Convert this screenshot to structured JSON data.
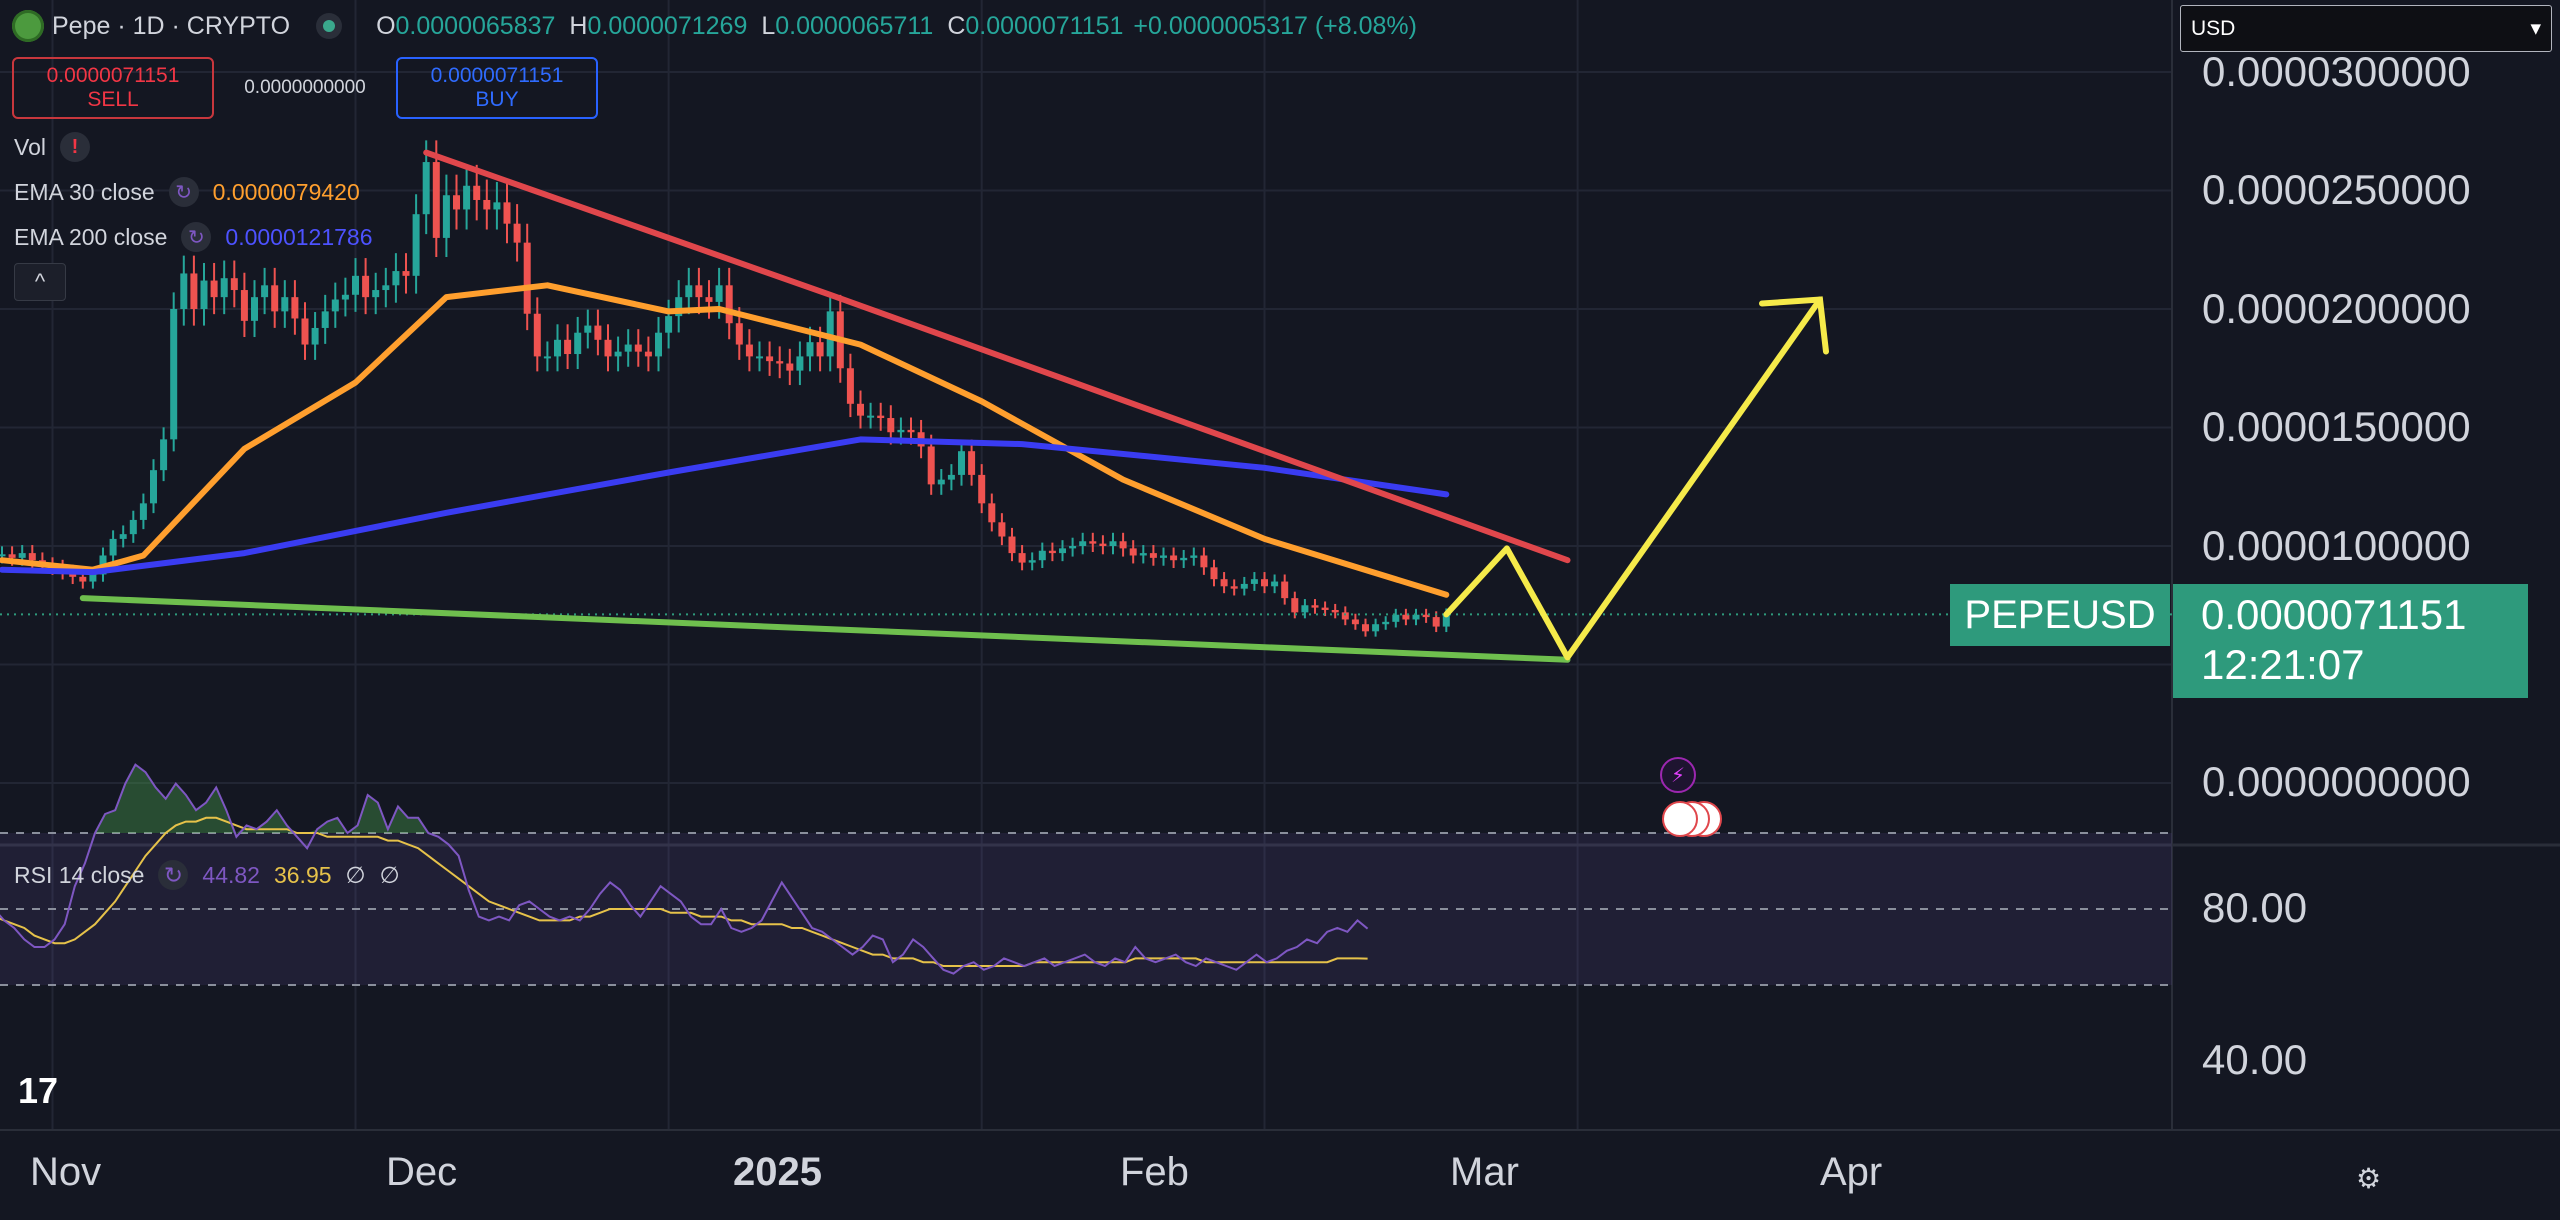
{
  "header": {
    "title": "Pepe · 1D · CRYPTO",
    "ohlc": {
      "o_label": "O",
      "o": "0.0000065837",
      "h_label": "H",
      "h": "0.0000071269",
      "l_label": "L",
      "l": "0.0000065711",
      "c_label": "C",
      "c": "0.0000071151",
      "change": "+0.0000005317 (+8.08%)"
    }
  },
  "trade": {
    "sell_price": "0.0000071151",
    "sell_label": "SELL",
    "spread": "0.0000000000",
    "buy_price": "0.0000071151",
    "buy_label": "BUY"
  },
  "indicators": {
    "vol_label": "Vol",
    "vol_icon": "!",
    "ema30_label": "EMA 30 close",
    "ema30_value": "0.0000079420",
    "ema200_label": "EMA 200 close",
    "ema200_value": "0.0000121786",
    "collapse_icon": "^"
  },
  "currency_select": {
    "value": "USD",
    "icon": "▾"
  },
  "price_tag": {
    "symbol": "PEPEUSD",
    "price": "0.0000071151",
    "countdown": "12:21:07"
  },
  "rsi_legend": {
    "label": "RSI 14 close",
    "rsi": "44.82",
    "ma": "36.95",
    "na1": "∅",
    "na2": "∅"
  },
  "colors": {
    "background": "#141722",
    "up": "#26a69a",
    "down": "#ef5350",
    "ema30": "#ff9f2e",
    "ema200": "#3a3cf2",
    "resistance": "#e0474c",
    "support": "#6fbf4e",
    "projection": "#f5ea4a",
    "rsi": "#7e57c2",
    "rsi_ma": "#e6c24a"
  },
  "chart_data": [
    {
      "type": "candlestick",
      "title": "",
      "xlabel": "",
      "ylabel": "",
      "x_ticks": [
        "Nov",
        "Dec",
        "2025",
        "Feb",
        "Mar",
        "Apr"
      ],
      "y_ticks": [
        "0.0000300000",
        "0.0000250000",
        "0.0000200000",
        "0.0000150000",
        "0.0000100000",
        "0.0000000000"
      ],
      "ylim": [
        0,
        3e-05
      ],
      "grid": true,
      "legend": "top-left",
      "close_series": [
        [
          "2024-10-27",
          9.65e-06
        ],
        [
          "2024-10-28",
          9.5e-06
        ],
        [
          "2024-10-29",
          9.7e-06
        ],
        [
          "2024-10-30",
          9.4e-06
        ],
        [
          "2024-10-31",
          9.2e-06
        ],
        [
          "2024-11-01",
          9.1e-06
        ],
        [
          "2024-11-02",
          8.9e-06
        ],
        [
          "2024-11-03",
          8.7e-06
        ],
        [
          "2024-11-04",
          8.5e-06
        ],
        [
          "2024-11-05",
          8.8e-06
        ],
        [
          "2024-11-06",
          9.6e-06
        ],
        [
          "2024-11-07",
          1.03e-05
        ],
        [
          "2024-11-08",
          1.05e-05
        ],
        [
          "2024-11-09",
          1.11e-05
        ],
        [
          "2024-11-10",
          1.18e-05
        ],
        [
          "2024-11-11",
          1.32e-05
        ],
        [
          "2024-11-12",
          1.45e-05
        ],
        [
          "2024-11-13",
          2e-05
        ],
        [
          "2024-11-14",
          2.15e-05
        ],
        [
          "2024-11-15",
          2e-05
        ],
        [
          "2024-11-16",
          2.12e-05
        ],
        [
          "2024-11-17",
          2.05e-05
        ],
        [
          "2024-11-18",
          2.13e-05
        ],
        [
          "2024-11-19",
          2.08e-05
        ],
        [
          "2024-11-20",
          1.95e-05
        ],
        [
          "2024-11-21",
          2.05e-05
        ],
        [
          "2024-11-22",
          2.1e-05
        ],
        [
          "2024-11-23",
          1.99e-05
        ],
        [
          "2024-11-24",
          2.05e-05
        ],
        [
          "2024-11-25",
          1.96e-05
        ],
        [
          "2024-11-26",
          1.85e-05
        ],
        [
          "2024-11-27",
          1.92e-05
        ],
        [
          "2024-11-28",
          1.99e-05
        ],
        [
          "2024-11-29",
          2.04e-05
        ],
        [
          "2024-11-30",
          2.06e-05
        ],
        [
          "2024-12-01",
          2.14e-05
        ],
        [
          "2024-12-02",
          2.05e-05
        ],
        [
          "2024-12-03",
          2.08e-05
        ],
        [
          "2024-12-04",
          2.1e-05
        ],
        [
          "2024-12-05",
          2.16e-05
        ],
        [
          "2024-12-06",
          2.14e-05
        ],
        [
          "2024-12-07",
          2.4e-05
        ],
        [
          "2024-12-08",
          2.62e-05
        ],
        [
          "2024-12-09",
          2.3e-05
        ],
        [
          "2024-12-10",
          2.48e-05
        ],
        [
          "2024-12-11",
          2.42e-05
        ],
        [
          "2024-12-12",
          2.52e-05
        ],
        [
          "2024-12-13",
          2.46e-05
        ],
        [
          "2024-12-14",
          2.42e-05
        ],
        [
          "2024-12-15",
          2.45e-05
        ],
        [
          "2024-12-16",
          2.36e-05
        ],
        [
          "2024-12-17",
          2.28e-05
        ],
        [
          "2024-12-18",
          1.98e-05
        ],
        [
          "2024-12-19",
          1.8e-05
        ],
        [
          "2024-12-20",
          1.8e-05
        ],
        [
          "2024-12-21",
          1.87e-05
        ],
        [
          "2024-12-22",
          1.81e-05
        ],
        [
          "2024-12-23",
          1.9e-05
        ],
        [
          "2024-12-24",
          1.93e-05
        ],
        [
          "2024-12-25",
          1.87e-05
        ],
        [
          "2024-12-26",
          1.8e-05
        ],
        [
          "2024-12-27",
          1.82e-05
        ],
        [
          "2024-12-28",
          1.85e-05
        ],
        [
          "2024-12-29",
          1.82e-05
        ],
        [
          "2024-12-30",
          1.8e-05
        ],
        [
          "2024-12-31",
          1.9e-05
        ],
        [
          "2025-01-01",
          1.97e-05
        ],
        [
          "2025-01-02",
          2.05e-05
        ],
        [
          "2025-01-03",
          2.1e-05
        ],
        [
          "2025-01-04",
          2.05e-05
        ],
        [
          "2025-01-05",
          2.03e-05
        ],
        [
          "2025-01-06",
          2.1e-05
        ],
        [
          "2025-01-07",
          1.94e-05
        ],
        [
          "2025-01-08",
          1.85e-05
        ],
        [
          "2025-01-09",
          1.8e-05
        ],
        [
          "2025-01-10",
          1.8e-05
        ],
        [
          "2025-01-11",
          1.78e-05
        ],
        [
          "2025-01-12",
          1.77e-05
        ],
        [
          "2025-01-13",
          1.74e-05
        ],
        [
          "2025-01-14",
          1.8e-05
        ],
        [
          "2025-01-15",
          1.86e-05
        ],
        [
          "2025-01-16",
          1.8e-05
        ],
        [
          "2025-01-17",
          1.99e-05
        ],
        [
          "2025-01-18",
          1.75e-05
        ],
        [
          "2025-01-19",
          1.6e-05
        ],
        [
          "2025-01-20",
          1.55e-05
        ],
        [
          "2025-01-21",
          1.55e-05
        ],
        [
          "2025-01-22",
          1.54e-05
        ],
        [
          "2025-01-23",
          1.48e-05
        ],
        [
          "2025-01-24",
          1.49e-05
        ],
        [
          "2025-01-25",
          1.48e-05
        ],
        [
          "2025-01-26",
          1.42e-05
        ],
        [
          "2025-01-27",
          1.26e-05
        ],
        [
          "2025-01-28",
          1.28e-05
        ],
        [
          "2025-01-29",
          1.3e-05
        ],
        [
          "2025-01-30",
          1.4e-05
        ],
        [
          "2025-01-31",
          1.3e-05
        ],
        [
          "2025-02-01",
          1.18e-05
        ],
        [
          "2025-02-02",
          1.1e-05
        ],
        [
          "2025-02-03",
          1.04e-05
        ],
        [
          "2025-02-04",
          9.7e-06
        ],
        [
          "2025-02-05",
          9.3e-06
        ],
        [
          "2025-02-06",
          9.4e-06
        ],
        [
          "2025-02-07",
          9.8e-06
        ],
        [
          "2025-02-08",
          9.7e-06
        ],
        [
          "2025-02-09",
          9.9e-06
        ],
        [
          "2025-02-10",
          1e-05
        ],
        [
          "2025-02-11",
          1.02e-05
        ],
        [
          "2025-02-12",
          1.01e-05
        ],
        [
          "2025-02-13",
          1e-05
        ],
        [
          "2025-02-14",
          1.02e-05
        ],
        [
          "2025-02-15",
          9.9e-06
        ],
        [
          "2025-02-16",
          9.6e-06
        ],
        [
          "2025-02-17",
          9.7e-06
        ],
        [
          "2025-02-18",
          9.5e-06
        ],
        [
          "2025-02-19",
          9.6e-06
        ],
        [
          "2025-02-20",
          9.4e-06
        ],
        [
          "2025-02-21",
          9.5e-06
        ],
        [
          "2025-02-22",
          9.6e-06
        ],
        [
          "2025-02-23",
          9.1e-06
        ],
        [
          "2025-02-24",
          8.6e-06
        ],
        [
          "2025-02-25",
          8.3e-06
        ],
        [
          "2025-02-26",
          8.2e-06
        ],
        [
          "2025-02-27",
          8.4e-06
        ],
        [
          "2025-02-28",
          8.6e-06
        ],
        [
          "2025-03-01",
          8.3e-06
        ],
        [
          "2025-03-02",
          8.5e-06
        ],
        [
          "2025-03-03",
          7.8e-06
        ],
        [
          "2025-03-04",
          7.2e-06
        ],
        [
          "2025-03-05",
          7.5e-06
        ],
        [
          "2025-03-06",
          7.4e-06
        ],
        [
          "2025-03-07",
          7.3e-06
        ],
        [
          "2025-03-08",
          7.2e-06
        ],
        [
          "2025-03-09",
          6.9e-06
        ],
        [
          "2025-03-10",
          6.7e-06
        ],
        [
          "2025-03-11",
          6.4e-06
        ],
        [
          "2025-03-12",
          6.7e-06
        ],
        [
          "2025-03-13",
          6.8e-06
        ],
        [
          "2025-03-14",
          7.1e-06
        ],
        [
          "2025-03-15",
          6.9e-06
        ],
        [
          "2025-03-16",
          7.1e-06
        ],
        [
          "2025-03-17",
          7e-06
        ],
        [
          "2025-03-18",
          6.6e-06
        ],
        [
          "2025-03-19",
          7.1151e-06
        ]
      ],
      "series": [
        {
          "name": "EMA 30 close",
          "points": [
            [
              "2024-10-27",
              9.4e-06
            ],
            [
              "2024-11-05",
              9e-06
            ],
            [
              "2024-11-10",
              9.6e-06
            ],
            [
              "2024-11-20",
              1.41e-05
            ],
            [
              "2024-12-01",
              1.69e-05
            ],
            [
              "2024-12-10",
              2.05e-05
            ],
            [
              "2024-12-20",
              2.1e-05
            ],
            [
              "2025-01-01",
              1.99e-05
            ],
            [
              "2025-01-06",
              2e-05
            ],
            [
              "2025-01-20",
              1.85e-05
            ],
            [
              "2025-02-01",
              1.61e-05
            ],
            [
              "2025-02-15",
              1.28e-05
            ],
            [
              "2025-03-01",
              1.03e-05
            ],
            [
              "2025-03-19",
              7.942e-06
            ]
          ]
        },
        {
          "name": "EMA 200 close",
          "points": [
            [
              "2024-10-27",
              9e-06
            ],
            [
              "2024-11-05",
              8.9e-06
            ],
            [
              "2024-11-20",
              9.7e-06
            ],
            [
              "2024-12-10",
              1.14e-05
            ],
            [
              "2025-01-01",
              1.31e-05
            ],
            [
              "2025-01-20",
              1.45e-05
            ],
            [
              "2025-02-05",
              1.43e-05
            ],
            [
              "2025-03-01",
              1.33e-05
            ],
            [
              "2025-03-19",
              1.21786e-05
            ]
          ]
        },
        {
          "name": "Resistance trendline",
          "points": [
            [
              "2024-12-08",
              2.66e-05
            ],
            [
              "2025-01-17",
              2.06e-05
            ],
            [
              "2025-03-31",
              9.4e-06
            ]
          ]
        },
        {
          "name": "Support trendline",
          "points": [
            [
              "2024-11-04",
              7.8e-06
            ],
            [
              "2025-03-31",
              5.2e-06
            ]
          ]
        },
        {
          "name": "Projection",
          "points": [
            [
              "2025-03-19",
              7.1151e-06
            ],
            [
              "2025-03-25",
              9.9e-06
            ],
            [
              "2025-03-31",
              5.3e-06
            ],
            [
              "2025-04-25",
              2.04e-05
            ]
          ]
        }
      ]
    },
    {
      "type": "line",
      "title": "",
      "y_ticks": [
        "80.00",
        "40.00"
      ],
      "ylim": [
        20,
        90
      ],
      "bands": [
        30,
        50,
        70
      ],
      "series": [
        {
          "name": "RSI 14 close",
          "values": [
            50,
            47,
            45,
            42,
            40,
            40,
            42,
            46,
            56,
            62,
            70,
            75,
            76,
            83,
            88,
            86,
            82,
            79,
            83,
            80,
            76,
            78,
            82,
            76,
            69,
            72,
            71,
            73,
            76,
            72,
            69,
            66,
            71,
            73,
            74,
            70,
            72,
            80,
            78,
            71,
            77,
            74,
            74,
            70,
            69,
            67,
            64,
            55,
            48,
            47,
            48,
            47,
            51,
            52,
            50,
            48,
            47,
            48,
            47,
            50,
            54,
            57,
            55,
            51,
            48,
            52,
            56,
            54,
            52,
            48,
            46,
            46,
            50,
            45,
            44,
            45,
            47,
            52,
            57,
            53,
            49,
            45,
            44,
            42,
            40,
            38,
            40,
            43,
            42,
            36,
            38,
            42,
            40,
            37,
            34,
            33,
            35,
            36,
            34,
            35,
            37,
            36,
            35,
            36,
            37,
            35,
            36,
            37,
            38,
            36,
            35,
            37,
            36,
            40,
            37,
            36,
            37,
            38,
            36,
            35,
            37,
            36,
            35,
            34,
            36,
            38,
            36,
            37,
            39,
            40,
            42,
            41,
            44,
            45,
            44,
            47,
            44.82
          ]
        },
        {
          "name": "RSI-based MA",
          "values": [
            48,
            47,
            46,
            45,
            43,
            42,
            41,
            41,
            42,
            44,
            46,
            49,
            52,
            56,
            60,
            64,
            67,
            70,
            72,
            73,
            73,
            74,
            74,
            73,
            72,
            71,
            71,
            71,
            71,
            71,
            70,
            70,
            70,
            69,
            69,
            69,
            69,
            69,
            69,
            68,
            68,
            67,
            66,
            64,
            62,
            60,
            58,
            56,
            54,
            52,
            51,
            50,
            49,
            48,
            47,
            47,
            47,
            47,
            48,
            48,
            49,
            50,
            50,
            50,
            50,
            50,
            50,
            49,
            49,
            49,
            48,
            48,
            48,
            47,
            47,
            46,
            46,
            46,
            46,
            45,
            45,
            44,
            43,
            42,
            41,
            40,
            39,
            38,
            38,
            37,
            37,
            37,
            36,
            36,
            35,
            35,
            35,
            35,
            35,
            35,
            35,
            35,
            35,
            36,
            36,
            36,
            36,
            36,
            36,
            36,
            36,
            36,
            36,
            37,
            37,
            37,
            37,
            37,
            37,
            37,
            36,
            36,
            36,
            36,
            36,
            36,
            36,
            36,
            36,
            36,
            36,
            36,
            36,
            37,
            37,
            37,
            36.95
          ]
        }
      ]
    }
  ],
  "price_axis_labels": [
    "0.0000300000",
    "0.0000250000",
    "0.0000200000",
    "0.0000150000",
    "0.0000100000",
    "0.0000000000"
  ],
  "rsi_axis_labels": [
    "80.00",
    "40.00"
  ],
  "time_axis_labels": [
    "Nov",
    "Dec",
    "2025",
    "Feb",
    "Mar",
    "Apr"
  ],
  "footer": {
    "tv_logo": "17",
    "settings_icon": "⚙"
  },
  "events": {
    "lightning_icon": "⚡"
  }
}
